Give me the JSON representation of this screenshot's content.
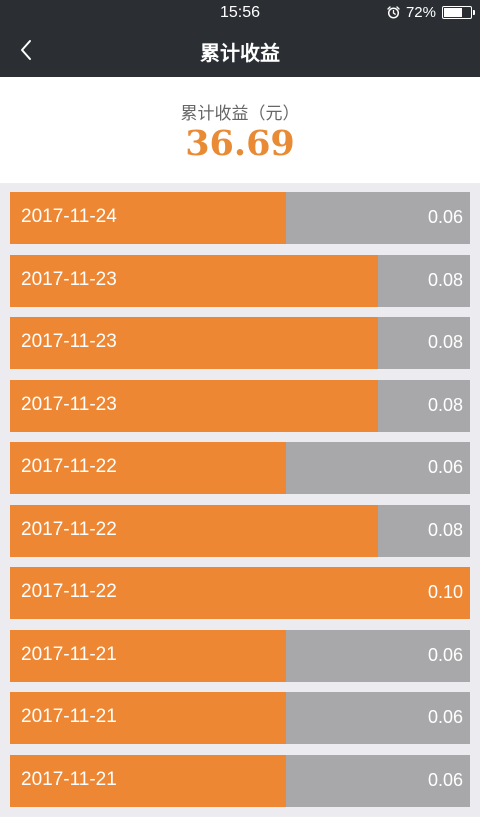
{
  "status_bar": {
    "time": "15:56",
    "battery_text": "72%",
    "battery_level": 0.72,
    "icons": [
      "alarm-icon",
      "battery-icon"
    ]
  },
  "nav": {
    "back_icon": "chevron-left-icon",
    "title": "累计收益"
  },
  "summary": {
    "label": "累计收益（元）",
    "value": "36.69"
  },
  "colors": {
    "header_bg": "#2b2f33",
    "accent": "#ee8733",
    "bar_track": "#a8a8aa",
    "page_bg": "#ebebf0"
  },
  "earnings": {
    "max_value": 0.1,
    "rows": [
      {
        "date": "2017-11-24",
        "value": "0.06",
        "amount": 0.06
      },
      {
        "date": "2017-11-23",
        "value": "0.08",
        "amount": 0.08
      },
      {
        "date": "2017-11-23",
        "value": "0.08",
        "amount": 0.08
      },
      {
        "date": "2017-11-23",
        "value": "0.08",
        "amount": 0.08
      },
      {
        "date": "2017-11-22",
        "value": "0.06",
        "amount": 0.06
      },
      {
        "date": "2017-11-22",
        "value": "0.08",
        "amount": 0.08
      },
      {
        "date": "2017-11-22",
        "value": "0.10",
        "amount": 0.1
      },
      {
        "date": "2017-11-21",
        "value": "0.06",
        "amount": 0.06
      },
      {
        "date": "2017-11-21",
        "value": "0.06",
        "amount": 0.06
      },
      {
        "date": "2017-11-21",
        "value": "0.06",
        "amount": 0.06
      }
    ]
  }
}
